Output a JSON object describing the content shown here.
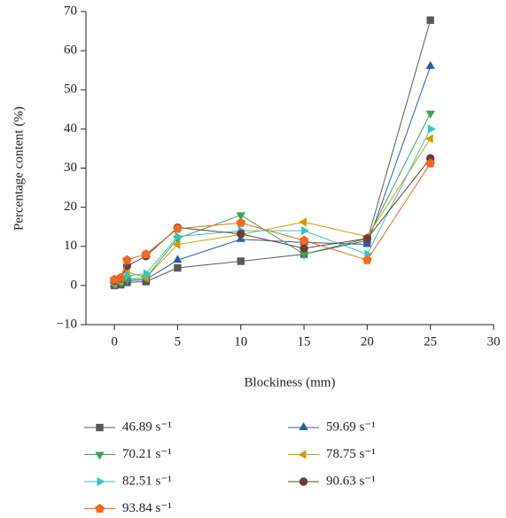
{
  "chart_data": {
    "type": "line",
    "x_label": "Blockiness (mm)",
    "y_label": "Percentage content (%)",
    "x": [
      0,
      0.5,
      1,
      2.5,
      5,
      10,
      15,
      20,
      25
    ],
    "xlim": [
      -2.25,
      30
    ],
    "xticks": [
      0,
      5,
      10,
      15,
      20,
      25,
      30
    ],
    "ylim": [
      -10,
      70
    ],
    "yticks": [
      {
        "value": -10,
        "label": "−10"
      },
      0,
      10,
      20,
      30,
      40,
      50,
      60,
      70
    ],
    "series": [
      {
        "name": "46.89 s⁻¹",
        "color": "#595959",
        "marker": "square",
        "values": [
          0,
          0.2,
          0.8,
          1,
          4.5,
          6.2,
          8,
          11.5,
          67.8
        ]
      },
      {
        "name": "59.69 s⁻¹",
        "color": "#2b5ca8",
        "marker": "triangle-up",
        "values": [
          0.2,
          0.5,
          1.2,
          1.5,
          6.5,
          11.8,
          11,
          10.5,
          56
        ]
      },
      {
        "name": "70.21 s⁻¹",
        "color": "#3aa655",
        "marker": "triangle-down",
        "values": [
          0.3,
          0.8,
          1.5,
          2,
          12,
          18,
          8,
          12,
          44
        ]
      },
      {
        "name": "78.75 s⁻¹",
        "color": "#c9a100",
        "marker": "triangle-left",
        "values": [
          0.5,
          1,
          3.5,
          2,
          10.5,
          13,
          16.2,
          12.5,
          37.5
        ]
      },
      {
        "name": "82.51 s⁻¹",
        "color": "#35c6c6",
        "marker": "triangle-right",
        "values": [
          1,
          1.5,
          2.5,
          3,
          12.5,
          14,
          14,
          8,
          40
        ]
      },
      {
        "name": "90.63 s⁻¹",
        "color": "#6e3c3c",
        "marker": "circle",
        "values": [
          1.2,
          1.8,
          5,
          7.5,
          14.8,
          13.2,
          9.5,
          12,
          32.5
        ]
      },
      {
        "name": "93.84 s⁻¹",
        "color": "#f06a1d",
        "marker": "pentagon",
        "values": [
          1.5,
          2,
          6.5,
          8,
          14.5,
          16,
          11.5,
          6.5,
          31.2
        ]
      }
    ]
  }
}
